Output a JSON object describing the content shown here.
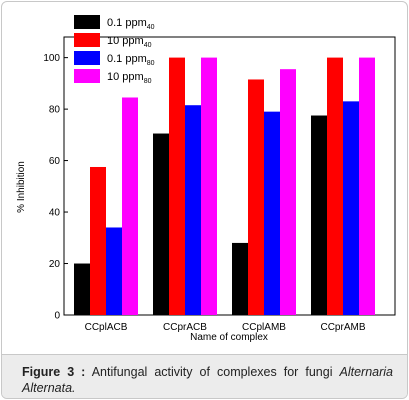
{
  "chart_data": {
    "type": "bar",
    "y_label": "% Inhibition",
    "x_label": "Name of complex",
    "categories": [
      "CCplACB",
      "CCprACB",
      "CCplAMB",
      "CCprAMB"
    ],
    "series": [
      {
        "name": "0.1 ppm",
        "subscript": "40",
        "color": "#000000",
        "values": [
          20,
          70.5,
          28,
          77.5
        ]
      },
      {
        "name": "10 ppm",
        "subscript": "40",
        "color": "#ff0000",
        "values": [
          57.5,
          100,
          91.5,
          100
        ]
      },
      {
        "name": "0.1 ppm",
        "subscript": "80",
        "color": "#0000ff",
        "values": [
          34,
          81.5,
          79,
          83
        ]
      },
      {
        "name": "10 ppm",
        "subscript": "80",
        "color": "#ff00ff",
        "values": [
          84.5,
          100,
          95.5,
          100
        ]
      }
    ],
    "ylim": [
      0,
      108
    ],
    "yticks": [
      0,
      20,
      40,
      60,
      80,
      100
    ],
    "legend": "top-left"
  },
  "caption": {
    "label": "Figure 3 :",
    "text": "Antifungal activity of complexes for fungi",
    "species": "Alternaria Alternata."
  }
}
